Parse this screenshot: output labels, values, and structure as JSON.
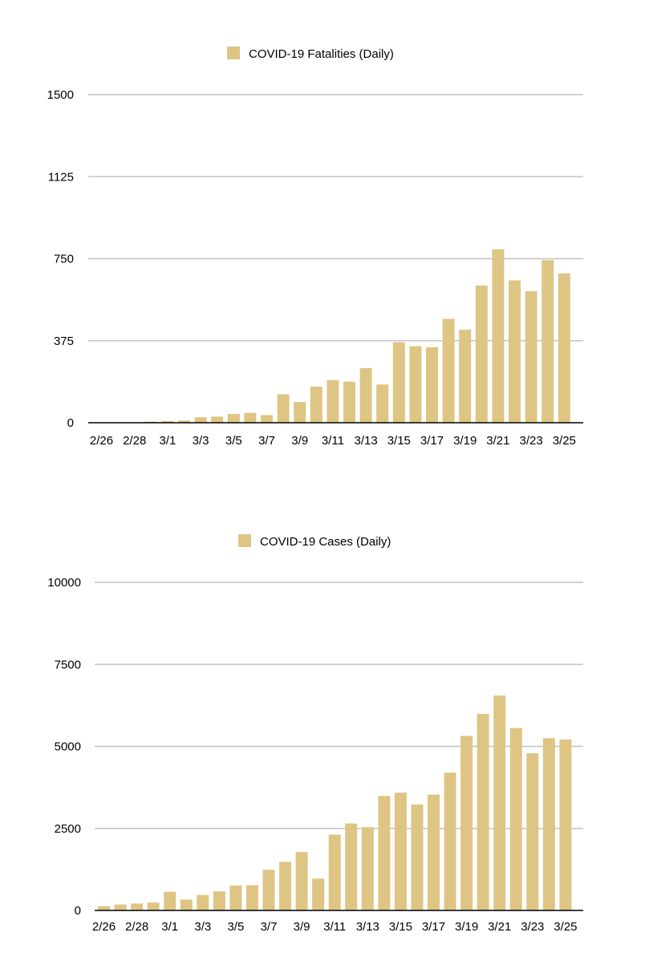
{
  "bar_color": "#dec584",
  "grid_color": "#c4c4c4",
  "chart_data": [
    {
      "type": "bar",
      "legend": "COVID-19 Fatalities (Daily)",
      "ylim": [
        0,
        1500
      ],
      "yticks": [
        "0",
        "375",
        "750",
        "1125",
        "1500"
      ],
      "xticks": [
        "2/26",
        "2/28",
        "3/1",
        "3/3",
        "3/5",
        "3/7",
        "3/9",
        "3/11",
        "3/13",
        "3/15",
        "3/17",
        "3/19",
        "3/21",
        "3/23",
        "3/25"
      ],
      "categories": [
        "2/26",
        "2/27",
        "2/28",
        "2/29",
        "3/1",
        "3/2",
        "3/3",
        "3/4",
        "3/5",
        "3/6",
        "3/7",
        "3/8",
        "3/9",
        "3/10",
        "3/11",
        "3/12",
        "3/13",
        "3/14",
        "3/15",
        "3/16",
        "3/17",
        "3/18",
        "3/19",
        "3/20",
        "3/21",
        "3/22",
        "3/23",
        "3/24",
        "3/25"
      ],
      "values": [
        0,
        1,
        2,
        5,
        8,
        10,
        25,
        28,
        40,
        45,
        35,
        130,
        95,
        165,
        195,
        188,
        250,
        175,
        368,
        350,
        345,
        475,
        425,
        627,
        793,
        651,
        601,
        743,
        683
      ]
    },
    {
      "type": "bar",
      "legend": "COVID-19 Cases (Daily)",
      "ylim": [
        0,
        10000
      ],
      "yticks": [
        "0",
        "2500",
        "5000",
        "7500",
        "10000"
      ],
      "xticks": [
        "2/26",
        "2/28",
        "3/1",
        "3/3",
        "3/5",
        "3/7",
        "3/9",
        "3/11",
        "3/13",
        "3/15",
        "3/17",
        "3/19",
        "3/21",
        "3/23",
        "3/25"
      ],
      "categories": [
        "2/26",
        "2/27",
        "2/28",
        "2/29",
        "3/1",
        "3/2",
        "3/3",
        "3/4",
        "3/5",
        "3/6",
        "3/7",
        "3/8",
        "3/9",
        "3/10",
        "3/11",
        "3/12",
        "3/13",
        "3/14",
        "3/15",
        "3/16",
        "3/17",
        "3/18",
        "3/19",
        "3/20",
        "3/21",
        "3/22",
        "3/23",
        "3/24",
        "3/25"
      ],
      "values": [
        130,
        180,
        210,
        240,
        570,
        330,
        470,
        580,
        760,
        770,
        1240,
        1480,
        1780,
        970,
        2310,
        2650,
        2540,
        3490,
        3590,
        3230,
        3530,
        4200,
        5320,
        5990,
        6550,
        5560,
        4790,
        5250,
        5210
      ]
    }
  ]
}
